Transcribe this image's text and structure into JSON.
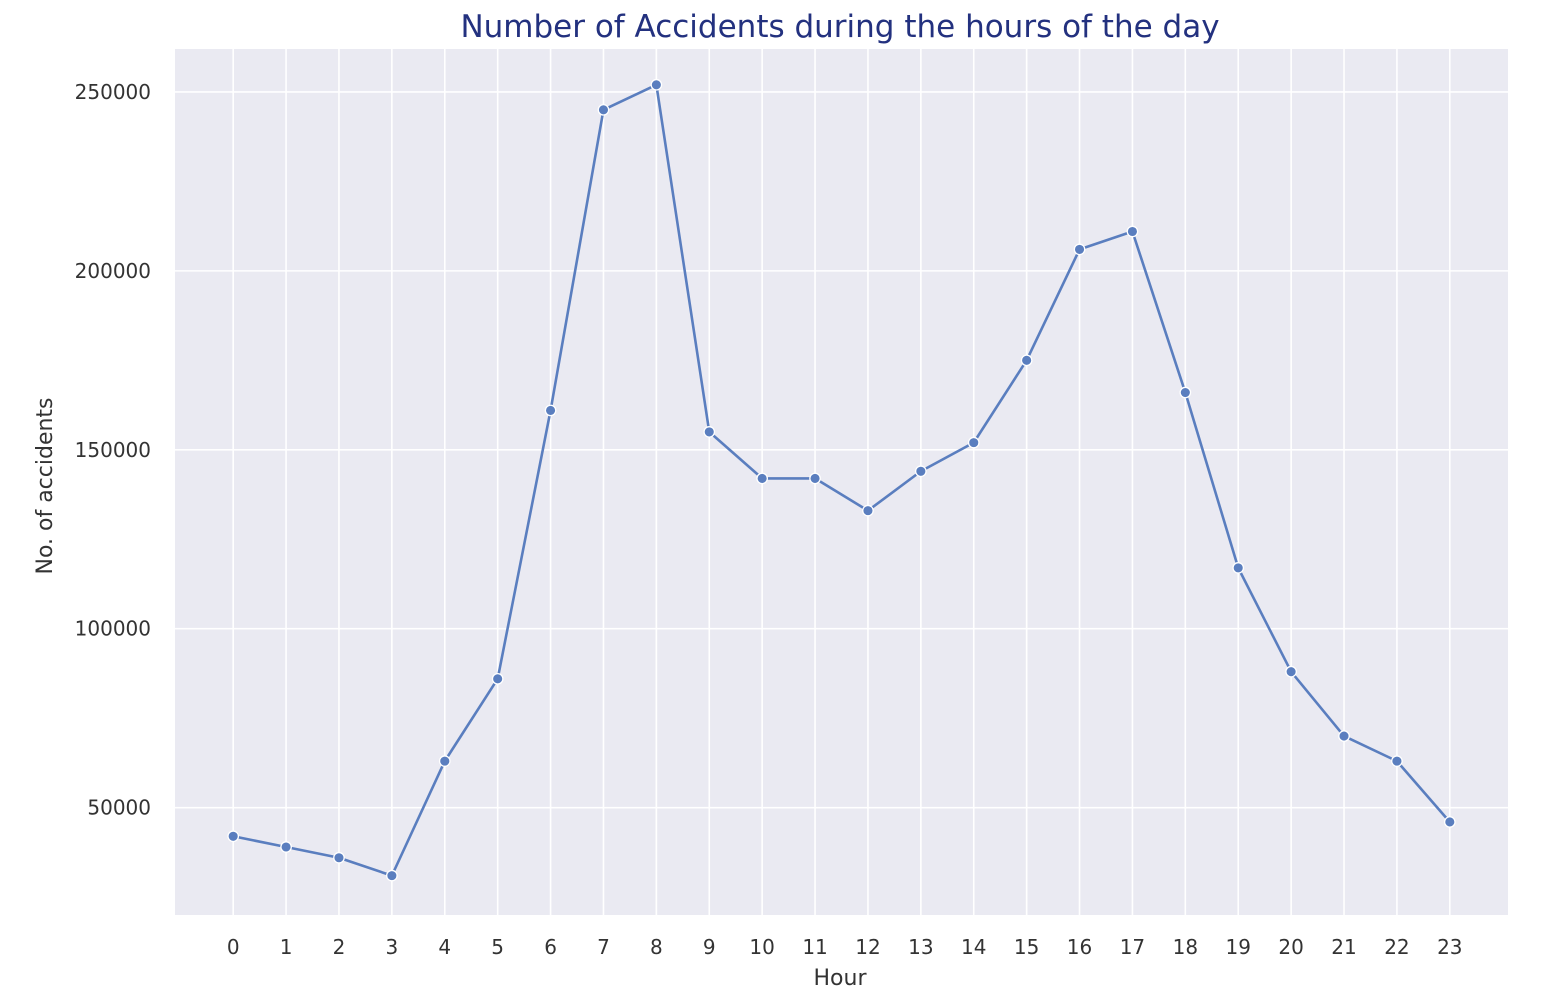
{
  "chart_data": {
    "type": "line",
    "title": "Number of Accidents during the hours of the day",
    "xlabel": "Hour",
    "ylabel": "No. of accidents",
    "x": [
      0,
      1,
      2,
      3,
      4,
      5,
      6,
      7,
      8,
      9,
      10,
      11,
      12,
      13,
      14,
      15,
      16,
      17,
      18,
      19,
      20,
      21,
      22,
      23
    ],
    "series": [
      {
        "values": [
          42000,
          39000,
          36000,
          31000,
          63000,
          86000,
          161000,
          245000,
          252000,
          155000,
          142000,
          142000,
          133000,
          144000,
          152000,
          175000,
          206000,
          211000,
          166000,
          117000,
          88000,
          70000,
          63000,
          46000
        ],
        "color": "#5a7ebf"
      }
    ],
    "yticks": [
      50000,
      100000,
      150000,
      200000,
      250000
    ],
    "ylim": [
      20000,
      262000
    ],
    "xlim": [
      -1.1,
      24.1
    ],
    "grid": true,
    "legend": "none",
    "colors": {
      "background": "#eaeaf2",
      "grid": "#ffffff",
      "line": "#5a7ebf",
      "title": "#23317f",
      "text": "#333333"
    }
  }
}
